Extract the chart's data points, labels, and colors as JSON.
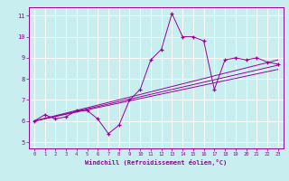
{
  "title": "",
  "xlabel": "Windchill (Refroidissement éolien,°C)",
  "ylabel": "",
  "bg_color": "#c8eef0",
  "line_color": "#990099",
  "grid_color": "#ffffff",
  "xlim": [
    -0.5,
    23.5
  ],
  "ylim": [
    4.7,
    11.4
  ],
  "xticks": [
    0,
    1,
    2,
    3,
    4,
    5,
    6,
    7,
    8,
    9,
    10,
    11,
    12,
    13,
    14,
    15,
    16,
    17,
    18,
    19,
    20,
    21,
    22,
    23
  ],
  "yticks": [
    5,
    6,
    7,
    8,
    9,
    10,
    11
  ],
  "main_x": [
    0,
    1,
    2,
    3,
    4,
    5,
    6,
    7,
    8,
    9,
    10,
    11,
    12,
    13,
    14,
    15,
    16,
    17,
    18,
    19,
    20,
    21,
    22,
    23
  ],
  "main_y": [
    6.0,
    6.3,
    6.1,
    6.2,
    6.5,
    6.5,
    6.1,
    5.4,
    5.8,
    7.0,
    7.5,
    8.9,
    9.4,
    11.1,
    10.0,
    10.0,
    9.8,
    7.5,
    8.9,
    9.0,
    8.9,
    9.0,
    8.8,
    8.7
  ],
  "line1_x": [
    0,
    23
  ],
  "line1_y": [
    6.0,
    8.9
  ],
  "line2_x": [
    0,
    23
  ],
  "line2_y": [
    6.0,
    8.65
  ],
  "line3_x": [
    0,
    23
  ],
  "line3_y": [
    6.0,
    8.45
  ]
}
